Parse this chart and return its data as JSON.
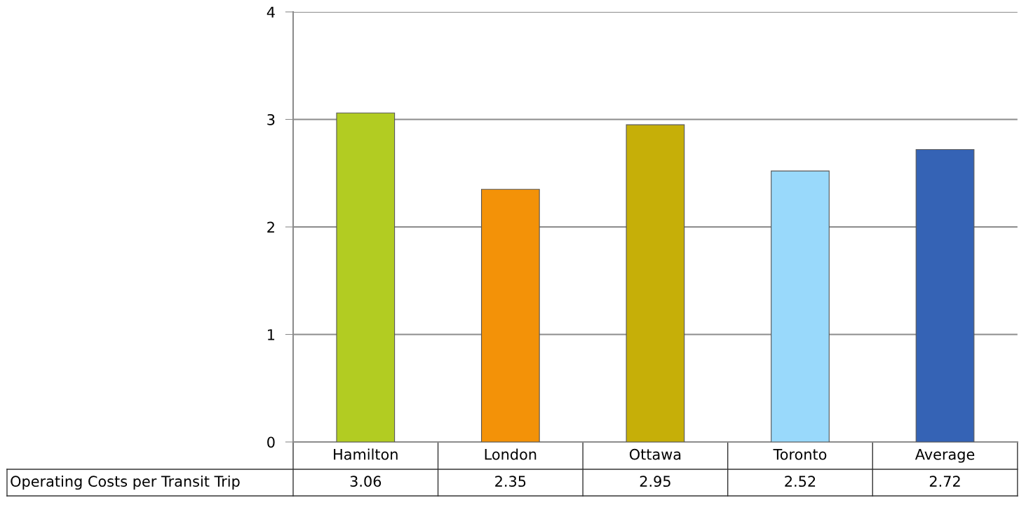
{
  "chart_data": {
    "type": "bar",
    "categories": [
      "Hamilton",
      "London",
      "Ottawa",
      "Toronto",
      "Average"
    ],
    "series": [
      {
        "name": "Operating Costs per Transit Trip",
        "values": [
          3.06,
          2.35,
          2.95,
          2.52,
          2.72
        ],
        "colors": [
          "#b2cc22",
          "#f39208",
          "#c6af08",
          "#99d9fb",
          "#3563b5"
        ]
      }
    ],
    "ylim": [
      0,
      4
    ],
    "yticks": [
      0,
      1,
      2,
      3,
      4
    ],
    "grid": "y",
    "data_labels": true,
    "legend": false
  }
}
